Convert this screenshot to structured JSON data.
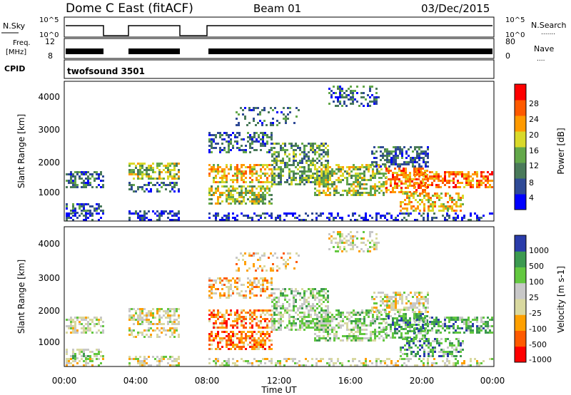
{
  "header": {
    "station": "Dome C East (fitACF)",
    "beam": "Beam 01",
    "date": "03/Dec/2015"
  },
  "sky_panel": {
    "left_label": "N.Sky",
    "left_ticks": [
      "10^5",
      "10^0"
    ],
    "right_label": "N.Search",
    "right_ticks": [
      "10^5",
      "10^0"
    ],
    "right_marker": "......."
  },
  "freq_panel": {
    "left_label_1": "Freq.",
    "left_label_2": "[MHz]",
    "left_ticks": [
      "12",
      "8"
    ],
    "right_label": "Nave",
    "right_ticks": [
      "80",
      "0"
    ],
    "right_marker": "...."
  },
  "cpid": {
    "label": "CPID",
    "program": "twofsound 3501"
  },
  "colors": {
    "power": [
      "#0000ff",
      "#2f4a96",
      "#4a7a5a",
      "#63a84a",
      "#d9d92a",
      "#ff9a00",
      "#ff5a00",
      "#ff0000"
    ],
    "velocity": [
      "#ff0000",
      "#ff5a00",
      "#ffa000",
      "#d9d9a0",
      "#c8c8c8",
      "#63c840",
      "#3c9a50",
      "#2a3caa"
    ]
  },
  "chart_data": [
    {
      "type": "heatmap",
      "name": "power",
      "ylabel": "Slant Range [km]",
      "yticks": [
        "1000",
        "2000",
        "3000",
        "4000"
      ],
      "ylim": [
        200,
        4600
      ],
      "xlim": [
        0,
        24
      ],
      "colorbar_label": "Power [dB]",
      "colorbar_ticks": [
        "4",
        "8",
        "12",
        "16",
        "20",
        "24",
        "28"
      ],
      "colorbar_range": [
        0,
        32
      ]
    },
    {
      "type": "heatmap",
      "name": "velocity",
      "ylabel": "Slant Range [km]",
      "yticks": [
        "1000",
        "2000",
        "3000",
        "4000"
      ],
      "ylim": [
        200,
        4600
      ],
      "xlim": [
        0,
        24
      ],
      "colorbar_label": "Velocity [m s-1]",
      "colorbar_ticks": [
        "1000",
        "500",
        "100",
        "25",
        "-25",
        "-100",
        "-500",
        "-1000"
      ]
    }
  ],
  "time_axis": {
    "ticks": [
      "00:00",
      "04:00",
      "08:00",
      "12:00",
      "16:00",
      "20:00",
      "00:00"
    ],
    "label": "Time UT"
  }
}
